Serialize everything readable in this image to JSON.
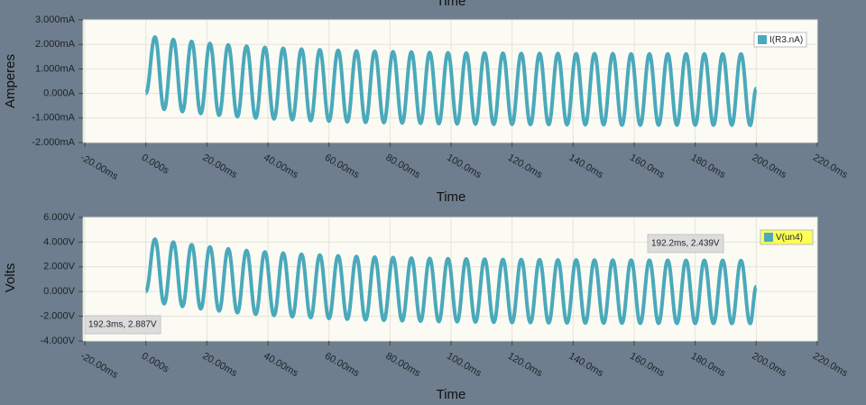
{
  "cropped_label": "Time",
  "chart_data": [
    {
      "type": "line",
      "x_label": "Time",
      "y_label": "Amperes",
      "grid": true,
      "legend": "top-right",
      "xlim": [
        -20,
        220
      ],
      "xticks": [
        {
          "value": -20,
          "label": "-20.00ms"
        },
        {
          "value": 0,
          "label": "0.000s"
        },
        {
          "value": 20,
          "label": "20.00ms"
        },
        {
          "value": 40,
          "label": "40.00ms"
        },
        {
          "value": 60,
          "label": "60.00ms"
        },
        {
          "value": 80,
          "label": "80.00ms"
        },
        {
          "value": 100,
          "label": "100.0ms"
        },
        {
          "value": 120,
          "label": "120.0ms"
        },
        {
          "value": 140,
          "label": "140.0ms"
        },
        {
          "value": 160,
          "label": "160.0ms"
        },
        {
          "value": 180,
          "label": "180.0ms"
        },
        {
          "value": 200,
          "label": "200.0ms"
        },
        {
          "value": 220,
          "label": "220.0ms"
        }
      ],
      "ylim": [
        -2,
        3
      ],
      "yticks": [
        {
          "value": 3,
          "label": "3.000mA"
        },
        {
          "value": 2,
          "label": "2.000mA"
        },
        {
          "value": 1,
          "label": "1.000mA"
        },
        {
          "value": 0,
          "label": "0.000A"
        },
        {
          "value": -1,
          "label": "-1.000mA"
        },
        {
          "value": -2,
          "label": "-2.000mA"
        }
      ],
      "x": [
        0,
        3,
        6,
        9,
        12,
        15,
        18,
        21,
        24,
        27,
        30,
        33,
        36,
        39,
        42,
        45,
        48,
        51,
        54,
        57,
        60,
        63,
        66,
        69,
        72,
        75,
        78,
        81,
        84,
        87,
        90,
        93,
        96,
        99,
        102,
        105,
        108,
        111,
        114,
        117,
        120,
        123,
        126,
        129,
        132,
        135,
        138,
        141,
        144,
        147,
        150,
        153,
        156,
        159,
        162,
        165,
        168,
        171,
        174,
        177,
        180,
        183,
        186,
        189,
        192,
        195,
        198,
        200
      ],
      "series": [
        {
          "name": "I(R3.nA)",
          "color": "#4aa9bb",
          "values": [
            0,
            2.3,
            -0.65,
            2.2,
            -0.74,
            2.12,
            -0.82,
            2.04,
            -0.89,
            1.98,
            -0.95,
            1.93,
            -1.0,
            1.88,
            -1.04,
            1.84,
            -1.07,
            1.81,
            -1.11,
            1.78,
            -1.13,
            1.76,
            -1.16,
            1.73,
            -1.18,
            1.72,
            -1.19,
            1.7,
            -1.21,
            1.69,
            -1.22,
            1.67,
            -1.23,
            1.66,
            -1.24,
            1.65,
            -1.25,
            1.65,
            -1.26,
            1.64,
            -1.26,
            1.63,
            -1.27,
            1.63,
            -1.27,
            1.63,
            -1.28,
            1.62,
            -1.28,
            1.62,
            -1.28,
            1.62,
            -1.29,
            1.61,
            -1.29,
            1.61,
            -1.29,
            1.61,
            -1.29,
            1.61,
            -1.29,
            1.61,
            -1.29,
            1.61,
            -1.29,
            1.61,
            -1.3,
            0.2
          ]
        }
      ],
      "annotations": []
    },
    {
      "type": "line",
      "x_label": "Time",
      "y_label": "Volts",
      "grid": true,
      "legend": "top-right",
      "xlim": [
        -20,
        220
      ],
      "xticks": [
        {
          "value": -20,
          "label": "-20.00ms"
        },
        {
          "value": 0,
          "label": "0.000s"
        },
        {
          "value": 20,
          "label": "20.00ms"
        },
        {
          "value": 40,
          "label": "40.00ms"
        },
        {
          "value": 60,
          "label": "60.00ms"
        },
        {
          "value": 80,
          "label": "80.00ms"
        },
        {
          "value": 100,
          "label": "100.0ms"
        },
        {
          "value": 120,
          "label": "120.0ms"
        },
        {
          "value": 140,
          "label": "140.0ms"
        },
        {
          "value": 160,
          "label": "160.0ms"
        },
        {
          "value": 180,
          "label": "180.0ms"
        },
        {
          "value": 200,
          "label": "200.0ms"
        },
        {
          "value": 220,
          "label": "220.0ms"
        }
      ],
      "ylim": [
        -4,
        6
      ],
      "yticks": [
        {
          "value": 6,
          "label": "6.000V"
        },
        {
          "value": 4,
          "label": "4.000V"
        },
        {
          "value": 2,
          "label": "2.000V"
        },
        {
          "value": 0,
          "label": "0.000V"
        },
        {
          "value": -2,
          "label": "-2.000V"
        },
        {
          "value": -4,
          "label": "-4.000V"
        }
      ],
      "x": [
        0,
        3,
        6,
        9,
        12,
        15,
        18,
        21,
        24,
        27,
        30,
        33,
        36,
        39,
        42,
        45,
        48,
        51,
        54,
        57,
        60,
        63,
        66,
        69,
        72,
        75,
        78,
        81,
        84,
        87,
        90,
        93,
        96,
        99,
        102,
        105,
        108,
        111,
        114,
        117,
        120,
        123,
        126,
        129,
        132,
        135,
        138,
        141,
        144,
        147,
        150,
        153,
        156,
        159,
        162,
        165,
        168,
        171,
        174,
        177,
        180,
        183,
        186,
        189,
        192,
        195,
        198,
        200
      ],
      "series": [
        {
          "name": "V(un4)",
          "color": "#4aa9bb",
          "legend_highlight": "#ffff55",
          "values": [
            0,
            4.24,
            -0.99,
            4.0,
            -1.21,
            3.79,
            -1.4,
            3.61,
            -1.57,
            3.45,
            -1.72,
            3.32,
            -1.84,
            3.21,
            -1.94,
            3.11,
            -2.04,
            3.02,
            -2.11,
            2.95,
            -2.18,
            2.89,
            -2.24,
            2.83,
            -2.29,
            2.79,
            -2.33,
            2.75,
            -2.37,
            2.71,
            -2.4,
            2.68,
            -2.43,
            2.66,
            -2.45,
            2.64,
            -2.47,
            2.62,
            -2.49,
            2.6,
            -2.51,
            2.59,
            -2.52,
            2.58,
            -2.53,
            2.56,
            -2.54,
            2.56,
            -2.55,
            2.55,
            -2.56,
            2.54,
            -2.56,
            2.54,
            -2.57,
            2.53,
            -2.57,
            2.53,
            -2.58,
            2.52,
            -2.58,
            2.52,
            -2.58,
            2.52,
            -2.59,
            2.51,
            -2.59,
            0.4
          ]
        }
      ],
      "annotations": [
        "192.2ms, 2.439V",
        "192.3ms, 2.887V"
      ]
    }
  ]
}
